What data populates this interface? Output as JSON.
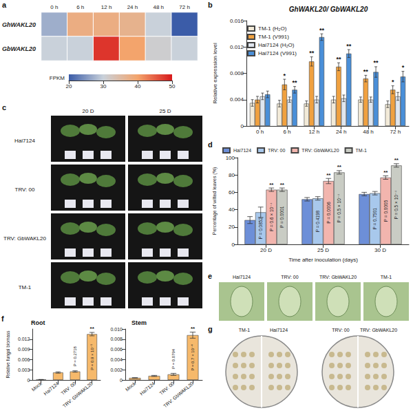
{
  "chart_data": [
    {
      "label": "a",
      "type": "heatmap",
      "x": [
        "0 h",
        "6 h",
        "12 h",
        "24 h",
        "48 h",
        "72 h"
      ],
      "y": [
        "GhWAKL20",
        "GbWAKL20"
      ],
      "cells": [
        [
          27,
          38,
          38,
          37,
          30,
          20
        ],
        [
          30,
          30,
          48,
          40,
          31,
          30
        ]
      ],
      "colorbar": {
        "title": "FPKM",
        "range": [
          20,
          50
        ],
        "ticks": [
          20,
          30,
          40,
          50
        ]
      }
    },
    {
      "label": "b",
      "type": "bar",
      "title": "GhWAKL20/ GbWAKL20",
      "y_label": "Relative expression level",
      "categories": [
        "0 h",
        "6 h",
        "12 h",
        "24 h",
        "48 h",
        "72 h"
      ],
      "series": [
        {
          "name": "TM-1 (H₂O)",
          "color": "#f2ead8",
          "values": [
            0.0035,
            0.0034,
            0.0034,
            0.004,
            0.004,
            0.0033
          ],
          "errors": [
            0.0005,
            0.0005,
            0.0004,
            0.0005,
            0.0004,
            0.0005
          ]
        },
        {
          "name": "TM-1 (V991)",
          "color": "#f0a140",
          "values": [
            0.004,
            0.0063,
            0.0098,
            0.009,
            0.0072,
            0.0055
          ],
          "errors": [
            0.0005,
            0.0008,
            0.0007,
            0.0006,
            0.0005,
            0.0006
          ],
          "significance": [
            null,
            "*",
            "**",
            "**",
            "**",
            "*"
          ]
        },
        {
          "name": "Hai7124 (H₂O)",
          "color": "#dfe6ef",
          "values": [
            0.0045,
            0.004,
            0.004,
            0.0042,
            0.004,
            0.0045
          ],
          "errors": [
            0.0005,
            0.0004,
            0.0005,
            0.0005,
            0.0004,
            0.0006
          ]
        },
        {
          "name": "Hai7124 (V991)",
          "color": "#4a8fd8",
          "values": [
            0.0048,
            0.0055,
            0.0135,
            0.011,
            0.0082,
            0.0075
          ],
          "errors": [
            0.0005,
            0.0005,
            0.0005,
            0.0006,
            0.0008,
            0.0008
          ],
          "significance": [
            null,
            "**",
            "**",
            "**",
            "**",
            "*"
          ]
        }
      ],
      "ylim": [
        0,
        0.016
      ],
      "yticks": [
        0,
        0.004,
        0.008,
        0.012,
        0.016
      ],
      "legend": "top-left",
      "grid": false
    },
    {
      "label": "d",
      "type": "bar",
      "y_label": "Percentage of wilted leaves (%)",
      "x_label": "Time after inoculation (days)",
      "categories": [
        "20 D",
        "25 D",
        "30 D"
      ],
      "series": [
        {
          "name": "Hai7124",
          "color": "#6d8fd8",
          "values": [
            28,
            52,
            58
          ],
          "errors": [
            4,
            2,
            2
          ]
        },
        {
          "name": "TRV: 00",
          "color": "#a8c8ec",
          "values": [
            37,
            53,
            59
          ],
          "errors": [
            6,
            2,
            2
          ],
          "p_labels": [
            "P = 0.0852",
            "P = 0.4198",
            "P = 0.7501"
          ]
        },
        {
          "name": "TRV: GbWAKL20",
          "color": "#f2b5ae",
          "values": [
            63,
            73,
            77
          ],
          "errors": [
            2,
            3,
            2
          ],
          "significance": [
            "**",
            "**",
            "**"
          ],
          "p_labels": [
            "P = 0.6 × 10⁻⁴",
            "P = 0.0006",
            "P = 0.0005"
          ]
        },
        {
          "name": "TM-1",
          "color": "#c9ccc4",
          "values": [
            63,
            83,
            91
          ],
          "errors": [
            2,
            2,
            2
          ],
          "significance": [
            "**",
            "**",
            "**"
          ],
          "p_labels": [
            "P = 0.0001",
            "P = 0.5 × 10⁻⁴",
            "P = 0.5 × 10⁻⁴"
          ]
        }
      ],
      "ylim": [
        0,
        100
      ],
      "yticks": [
        0,
        20,
        40,
        60,
        80,
        100
      ],
      "legend": "top",
      "grid": false
    },
    {
      "label": "f",
      "type": "bar",
      "title": "Root",
      "y_label": "Relative fungal biomass",
      "categories": [
        "Mock",
        "Hai7124",
        "TRV: 00",
        "TRV: GbWAKL20"
      ],
      "series": [
        {
          "color": "#f6b96b",
          "values": [
            0.0001,
            0.0022,
            0.0025,
            0.0135
          ],
          "errors": [
            5e-05,
            0.0002,
            0.0002,
            0.0005
          ],
          "significance": [
            null,
            null,
            null,
            "**"
          ],
          "p_labels": [
            null,
            null,
            "P = 0.2718",
            "P = 0.9 × 10⁻⁵"
          ]
        }
      ],
      "ylim": [
        0,
        0.015
      ],
      "yticks": [
        0,
        0.003,
        0.006,
        0.009,
        0.012
      ],
      "grid": false
    },
    {
      "type": "bar",
      "title": "Stem",
      "categories": [
        "Mock",
        "Hai7124",
        "TRV: 00",
        "TRV: GbWAKL20"
      ],
      "series": [
        {
          "color": "#f6b96b",
          "values": [
            0.0004,
            0.0008,
            0.0011,
            0.0088
          ],
          "errors": [
            5e-05,
            0.0001,
            0.0002,
            0.0006
          ],
          "significance": [
            null,
            null,
            null,
            "**"
          ],
          "p_labels": [
            null,
            null,
            "P = 0.0794",
            "P = 0.7 × 10⁻⁴"
          ]
        }
      ],
      "ylim": [
        0,
        0.01
      ],
      "yticks": [
        0,
        0.002,
        0.004,
        0.006,
        0.008,
        {
          "value": 0.01,
          "label": "0.010"
        }
      ],
      "grid": false
    }
  ],
  "photos": [
    {
      "label": "c",
      "columns": [
        "20 D",
        "25 D"
      ],
      "rows": [
        "Hai7124",
        "TRV: 00",
        "TRV: GbWAKL20",
        "TM-1"
      ]
    },
    {
      "label": "e",
      "captions": [
        "Hai7124",
        "TRV: 00",
        "TRV: GbWAKL20",
        "TM-1"
      ]
    },
    {
      "label": "g",
      "captions": [
        "TM-1",
        "Hai7124",
        "TRV: 00",
        "TRV: GbWAKL20"
      ]
    }
  ]
}
